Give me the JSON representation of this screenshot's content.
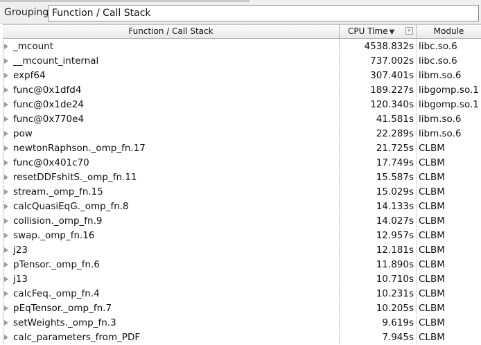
{
  "grouping": {
    "label": "Grouping:",
    "value": "Function / Call Stack"
  },
  "columns": {
    "function": "Function / Call Stack",
    "cpu_time": "CPU Time",
    "module": "Module"
  },
  "rows": [
    {
      "fn": "_mcount",
      "cpu": "4538.832s",
      "mod": "libc.so.6"
    },
    {
      "fn": "__mcount_internal",
      "cpu": "737.002s",
      "mod": "libc.so.6"
    },
    {
      "fn": "expf64",
      "cpu": "307.401s",
      "mod": "libm.so.6"
    },
    {
      "fn": "func@0x1dfd4",
      "cpu": "189.227s",
      "mod": "libgomp.so.1"
    },
    {
      "fn": "func@0x1de24",
      "cpu": "120.340s",
      "mod": "libgomp.so.1"
    },
    {
      "fn": "func@0x770e4",
      "cpu": "41.581s",
      "mod": "libm.so.6"
    },
    {
      "fn": "pow",
      "cpu": "22.289s",
      "mod": "libm.so.6"
    },
    {
      "fn": "newtonRaphson._omp_fn.17",
      "cpu": "21.725s",
      "mod": "CLBM"
    },
    {
      "fn": "func@0x401c70",
      "cpu": "17.749s",
      "mod": "CLBM"
    },
    {
      "fn": "resetDDFshitS._omp_fn.11",
      "cpu": "15.587s",
      "mod": "CLBM"
    },
    {
      "fn": "stream._omp_fn.15",
      "cpu": "15.029s",
      "mod": "CLBM"
    },
    {
      "fn": "calcQuasiEqG._omp_fn.8",
      "cpu": "14.133s",
      "mod": "CLBM"
    },
    {
      "fn": "collision._omp_fn.9",
      "cpu": "14.027s",
      "mod": "CLBM"
    },
    {
      "fn": "swap._omp_fn.16",
      "cpu": "12.957s",
      "mod": "CLBM"
    },
    {
      "fn": "j23",
      "cpu": "12.181s",
      "mod": "CLBM"
    },
    {
      "fn": "pTensor._omp_fn.6",
      "cpu": "11.890s",
      "mod": "CLBM"
    },
    {
      "fn": "j13",
      "cpu": "10.710s",
      "mod": "CLBM"
    },
    {
      "fn": "calcFeq._omp_fn.4",
      "cpu": "10.231s",
      "mod": "CLBM"
    },
    {
      "fn": "pEqTensor._omp_fn.7",
      "cpu": "10.205s",
      "mod": "CLBM"
    },
    {
      "fn": "setWeights._omp_fn.3",
      "cpu": "9.619s",
      "mod": "CLBM"
    },
    {
      "fn": "calc_parameters_from_PDF",
      "cpu": "7.945s",
      "mod": "CLBM"
    }
  ]
}
